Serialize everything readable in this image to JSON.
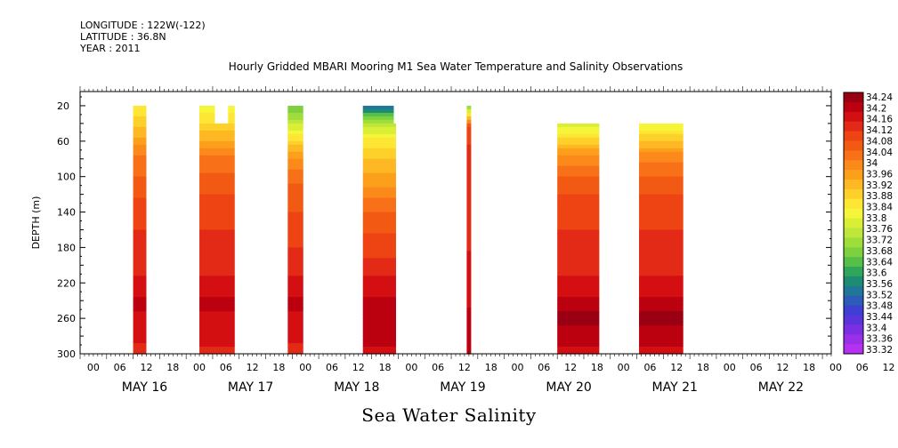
{
  "header": {
    "longitude": "LONGITUDE : 122W(-122)",
    "latitude": "LATITUDE : 36.8N",
    "year": "YEAR : 2011",
    "title": "Hourly Gridded MBARI Mooring M1 Sea Water Temperature and Salinity Observations"
  },
  "chart_data": {
    "type": "heatmap",
    "title": "Hourly Gridded MBARI Mooring M1 Sea Water Temperature and Salinity Observations",
    "xlabel": "Sea Water Salinity",
    "ylabel": "DEPTH (m)",
    "x_unit": "hours since MAY 15 2011 12:00",
    "xlim": [
      0,
      170
    ],
    "ylim": [
      300,
      4
    ],
    "y_ticks": [
      20,
      60,
      100,
      140,
      180,
      220,
      260,
      300
    ],
    "x_hour_ticks": [
      "00",
      "06",
      "12",
      "18",
      "00",
      "06",
      "12",
      "18",
      "00",
      "06",
      "12",
      "18",
      "00",
      "06",
      "12",
      "18",
      "00",
      "06",
      "12",
      "18",
      "00",
      "06",
      "12",
      "18",
      "00",
      "06",
      "12",
      "18",
      "00",
      "06",
      "12",
      "18"
    ],
    "x_day_labels": [
      "MAY 16",
      "MAY 17",
      "MAY 18",
      "MAY 19",
      "MAY 20",
      "MAY 21",
      "MAY 22"
    ],
    "colorbar_levels": [
      "34.24",
      "34.2",
      "34.16",
      "34.12",
      "34.08",
      "34.04",
      "34",
      "33.96",
      "33.92",
      "33.88",
      "33.84",
      "33.8",
      "33.76",
      "33.72",
      "33.68",
      "33.64",
      "33.6",
      "33.56",
      "33.52",
      "33.48",
      "33.44",
      "33.4",
      "33.36",
      "33.32"
    ],
    "colorbar_colors": [
      "#990012",
      "#bb0010",
      "#d40f12",
      "#e22a16",
      "#ee4414",
      "#f25a14",
      "#f87018",
      "#fb8a1a",
      "#fca01c",
      "#fdb824",
      "#fed02a",
      "#fde634",
      "#f5f539",
      "#d8ef36",
      "#bfe63a",
      "#9fdd3a",
      "#7fd03e",
      "#55bf4a",
      "#2fa659",
      "#1d8c72",
      "#207798",
      "#2c5bb8",
      "#3d40d2",
      "#5a34dc",
      "#7a2fe2",
      "#9a2fea",
      "#b530f0"
    ],
    "blocks": [
      {
        "x0": 12,
        "x1": 15,
        "top": 20,
        "profile": [
          [
            20,
            33.84
          ],
          [
            45,
            33.9
          ],
          [
            75,
            34.0
          ],
          [
            110,
            34.05
          ],
          [
            150,
            34.1
          ],
          [
            200,
            34.12
          ],
          [
            240,
            34.18
          ],
          [
            270,
            34.16
          ],
          [
            300,
            34.12
          ]
        ]
      },
      {
        "x0": 27,
        "x1": 35,
        "top": 20,
        "profile": [
          [
            20,
            33.8
          ],
          [
            45,
            33.88
          ],
          [
            75,
            34.0
          ],
          [
            110,
            34.06
          ],
          [
            150,
            34.1
          ],
          [
            200,
            34.12
          ],
          [
            240,
            34.18
          ],
          [
            270,
            34.16
          ],
          [
            300,
            34.13
          ]
        ]
      },
      {
        "x0": 47,
        "x1": 50.5,
        "top": 20,
        "profile": [
          [
            20,
            33.66
          ],
          [
            45,
            33.78
          ],
          [
            75,
            33.96
          ],
          [
            110,
            34.04
          ],
          [
            150,
            34.08
          ],
          [
            200,
            34.12
          ],
          [
            240,
            34.18
          ],
          [
            270,
            34.16
          ],
          [
            300,
            34.12
          ]
        ]
      },
      {
        "x0": 64,
        "x1": 71.5,
        "top": 20,
        "profile": [
          [
            20,
            33.5
          ],
          [
            35,
            33.7
          ],
          [
            60,
            33.85
          ],
          [
            100,
            33.94
          ],
          [
            140,
            34.04
          ],
          [
            190,
            34.1
          ],
          [
            240,
            34.18
          ],
          [
            270,
            34.2
          ],
          [
            300,
            34.16
          ]
        ]
      },
      {
        "x0": 87.5,
        "x1": 88.5,
        "top": 20,
        "profile": [
          [
            20,
            33.68
          ],
          [
            45,
            34.1
          ],
          [
            150,
            34.12
          ],
          [
            300,
            34.2
          ]
        ]
      },
      {
        "x0": 108,
        "x1": 117.5,
        "top": 40,
        "profile": [
          [
            20,
            33.72
          ],
          [
            45,
            33.8
          ],
          [
            75,
            33.96
          ],
          [
            110,
            34.06
          ],
          [
            150,
            34.1
          ],
          [
            200,
            34.12
          ],
          [
            240,
            34.18
          ],
          [
            260,
            34.22
          ],
          [
            300,
            34.16
          ]
        ]
      },
      {
        "x0": 126.5,
        "x1": 136.5,
        "top": 40,
        "profile": [
          [
            20,
            33.72
          ],
          [
            45,
            33.82
          ],
          [
            75,
            33.98
          ],
          [
            110,
            34.06
          ],
          [
            150,
            34.1
          ],
          [
            200,
            34.12
          ],
          [
            240,
            34.18
          ],
          [
            260,
            34.22
          ],
          [
            300,
            34.16
          ]
        ]
      }
    ],
    "notches": [
      {
        "x0": 30.5,
        "x1": 33.5,
        "top": 40
      },
      {
        "x0": 71,
        "x1": 71.5,
        "top": 40
      },
      {
        "x0": 108,
        "x1": 111.5,
        "top": 20
      },
      {
        "x0": 115,
        "x1": 116,
        "top": 20
      },
      {
        "x0": 131,
        "x1": 132.5,
        "top": 20
      }
    ]
  }
}
